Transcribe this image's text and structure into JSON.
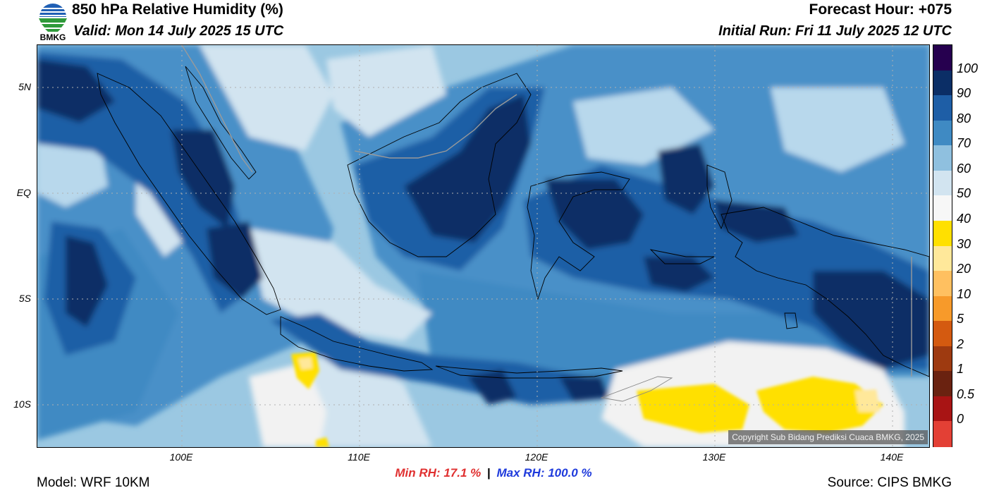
{
  "header": {
    "title": "850 hPa Relative Humidity (%)",
    "valid": "Valid: Mon 14 July 2025 15 UTC",
    "forecast_hour": "Forecast Hour: +075",
    "initial_run": "Initial Run: Fri 11 July 2025 12 UTC"
  },
  "logo": {
    "text": "BMKG"
  },
  "map": {
    "lat_labels": [
      "5N",
      "EQ",
      "5S",
      "10S"
    ],
    "lon_labels": [
      "100E",
      "110E",
      "120E",
      "130E",
      "140E"
    ],
    "copyright": "Copyright Sub Bidang Prediksi Cuaca BMKG, 2025"
  },
  "colorbar": {
    "labels": [
      "100",
      "90",
      "80",
      "70",
      "60",
      "50",
      "40",
      "30",
      "20",
      "10",
      "5",
      "2",
      "1",
      "0.5",
      "0"
    ],
    "colors": [
      "#26004f",
      "#0b2e66",
      "#1e5ea6",
      "#3f8ac3",
      "#8fc0df",
      "#d2e4f0",
      "#f7f7f7",
      "#ffe000",
      "#ffe89a",
      "#ffc060",
      "#f79a2a",
      "#d45a10",
      "#9e3a10",
      "#6a2210",
      "#a81414",
      "#e34035"
    ]
  },
  "footer": {
    "min_rh": "Min RH:  17.1 %",
    "separator": "|",
    "max_rh": "Max RH: 100.0 %",
    "model": "Model: WRF 10KM",
    "source": "Source: CIPS BMKG"
  }
}
